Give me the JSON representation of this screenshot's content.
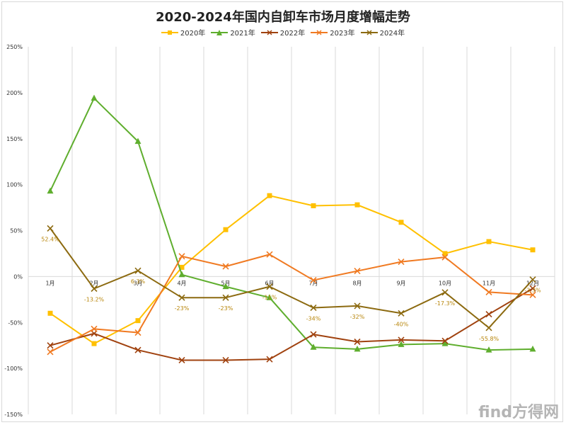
{
  "watermark": "find方得网",
  "chart_data": {
    "type": "line",
    "title": "2020-2024年国内自卸车市场月度增幅走势",
    "categories": [
      "1月",
      "2月",
      "3月",
      "4月",
      "5月",
      "6月",
      "7月",
      "8月",
      "9月",
      "10月",
      "11月",
      "12月"
    ],
    "ylim": [
      -150,
      250
    ],
    "yticks": [
      -150,
      -100,
      -50,
      0,
      50,
      100,
      150,
      200,
      250
    ],
    "ytick_labels": [
      "-150%",
      "-100%",
      "-50%",
      "0%",
      "50%",
      "100%",
      "150%",
      "200%",
      "250%"
    ],
    "grid": "vertical",
    "legend_position": "top-center",
    "series": [
      {
        "name": "2020年",
        "color": "#FFC000",
        "marker": "square",
        "values": [
          -40,
          -73,
          -48,
          10,
          51,
          88,
          77,
          78,
          59,
          25,
          38,
          29
        ]
      },
      {
        "name": "2021年",
        "color": "#5FAE2E",
        "marker": "triangle",
        "values": [
          93,
          194,
          147,
          2,
          -11,
          -23,
          -77,
          -79,
          -74,
          -73,
          -80,
          -79
        ]
      },
      {
        "name": "2022年",
        "color": "#A0420F",
        "marker": "x",
        "values": [
          -75,
          -62,
          -80,
          -91,
          -91,
          -90,
          -63,
          -71,
          -69,
          -70,
          -41,
          -13
        ]
      },
      {
        "name": "2023年",
        "color": "#F07A22",
        "marker": "x",
        "values": [
          -82,
          -57,
          -61,
          22,
          11,
          24,
          -4,
          6,
          16,
          21,
          -17,
          -20
        ]
      },
      {
        "name": "2024年",
        "color": "#8C6A10",
        "marker": "x",
        "values": [
          52.4,
          -13.2,
          6.3,
          -23,
          -23,
          -11,
          -34,
          -32,
          -40,
          -17.3,
          -55.8,
          -3.3
        ],
        "labels": [
          "52.4%",
          "-13.2%",
          "6.3%",
          "-23%",
          "-23%",
          "-11%",
          "-34%",
          "-32%",
          "-40%",
          "-17.3%",
          "-55.8%",
          "-3.3%"
        ],
        "label_color": "#B8860B"
      }
    ]
  }
}
